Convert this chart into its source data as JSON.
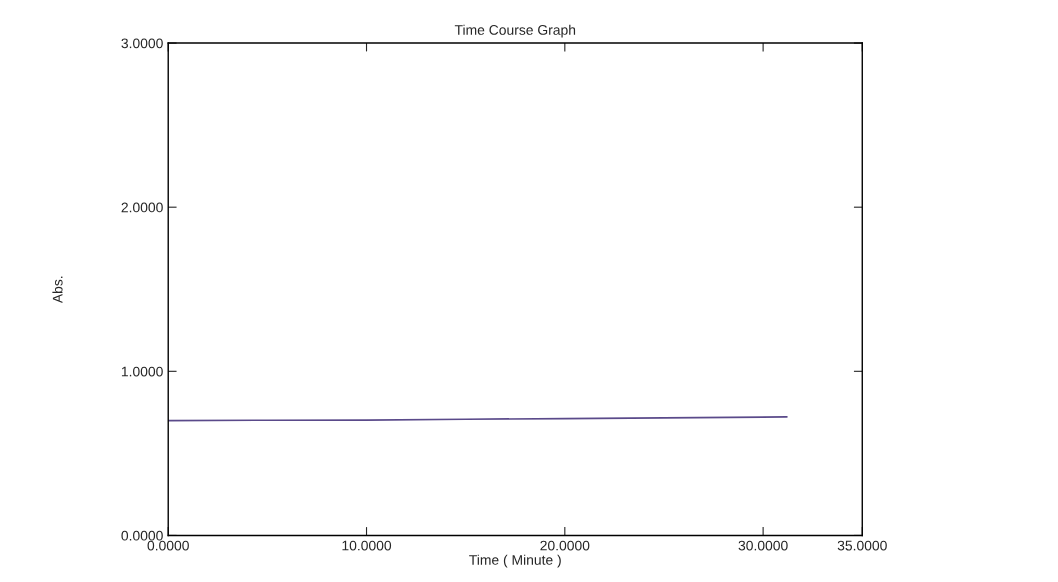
{
  "chart_data": {
    "type": "line",
    "title": "Time Course Graph",
    "xlabel": "Time ( Minute )",
    "ylabel": "Abs.",
    "x": [
      0,
      5,
      10,
      15,
      20,
      25,
      31.2
    ],
    "series": [
      {
        "color": "#5a4a8a",
        "values": [
          0.7,
          0.702,
          0.703,
          0.708,
          0.712,
          0.716,
          0.722
        ]
      }
    ],
    "xlim": [
      0,
      35
    ],
    "ylim": [
      0,
      3
    ],
    "xticks": [
      {
        "value": 0,
        "label": "0.0000"
      },
      {
        "value": 10,
        "label": "10.0000"
      },
      {
        "value": 20,
        "label": "20.0000"
      },
      {
        "value": 30,
        "label": "30.0000"
      },
      {
        "value": 35,
        "label": "35.0000"
      }
    ],
    "yticks": [
      {
        "value": 0,
        "label": "0.0000"
      },
      {
        "value": 1,
        "label": "1.0000"
      },
      {
        "value": 2,
        "label": "2.0000"
      },
      {
        "value": 3,
        "label": "3.0000"
      }
    ],
    "grid": false,
    "legend": false,
    "marker": "none",
    "line_style": "solid"
  }
}
